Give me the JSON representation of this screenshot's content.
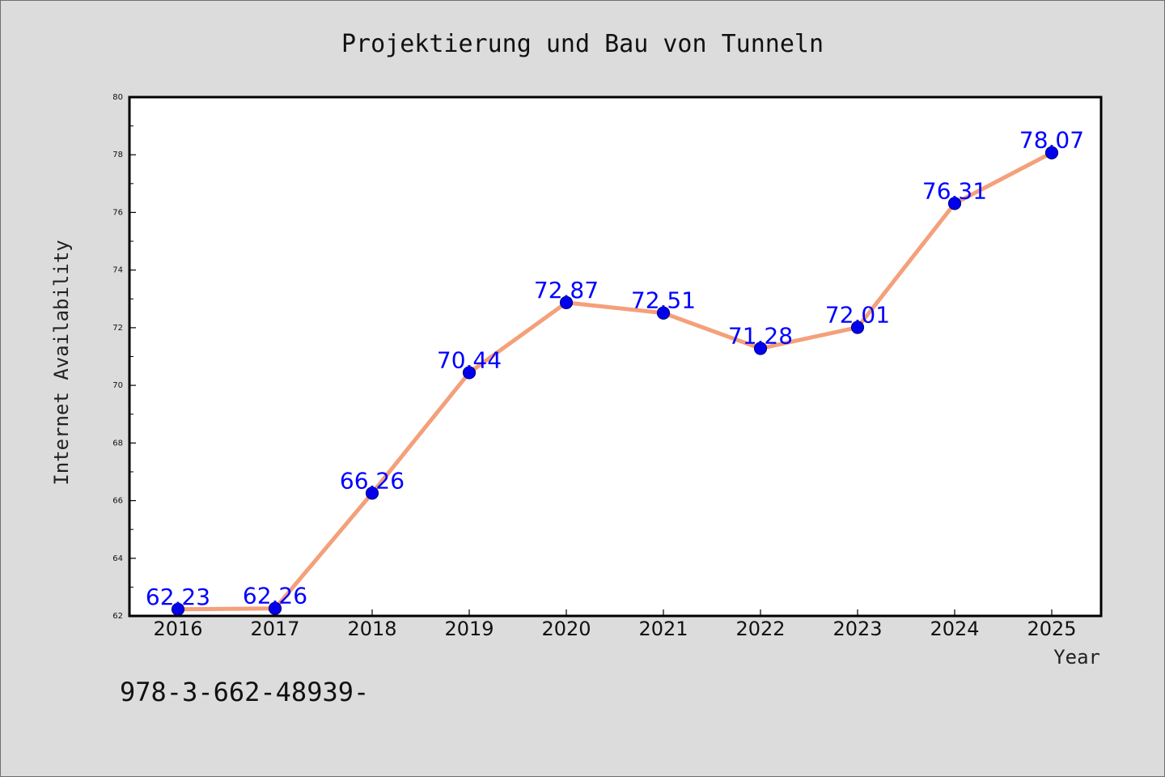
{
  "chart_data": {
    "type": "line",
    "title": "Projektierung und Bau von Tunneln",
    "xlabel": "Year",
    "ylabel": "Internet Availability",
    "x": [
      "2016",
      "2017",
      "2018",
      "2019",
      "2020",
      "2021",
      "2022",
      "2023",
      "2024",
      "2025"
    ],
    "series": [
      {
        "values": [
          62.23,
          62.26,
          66.26,
          70.44,
          72.87,
          72.51,
          71.28,
          72.01,
          76.31,
          78.07
        ],
        "labels": [
          "62.23",
          "62.26",
          "66.26",
          "70.44",
          "72.87",
          "72.51",
          "71.28",
          "72.01",
          "76.31",
          "78.07"
        ]
      }
    ],
    "ylim": [
      62,
      80
    ],
    "yticks": [
      62,
      64,
      66,
      68,
      70,
      72,
      74,
      76,
      78,
      80
    ],
    "ytick_labels": [
      "62",
      "64",
      "66",
      "68",
      "70",
      "72",
      "74",
      "76",
      "78",
      "80"
    ],
    "grid": false,
    "legend": "none",
    "colors": {
      "line": "#f4a07a",
      "marker": "#0000ee",
      "marker_edge": "#00008b",
      "data_label": "#0000ff",
      "axes_bg": "#ffffff",
      "figure_bg": "#dcdcdc"
    }
  },
  "footer_text": "978-3-662-48939-"
}
